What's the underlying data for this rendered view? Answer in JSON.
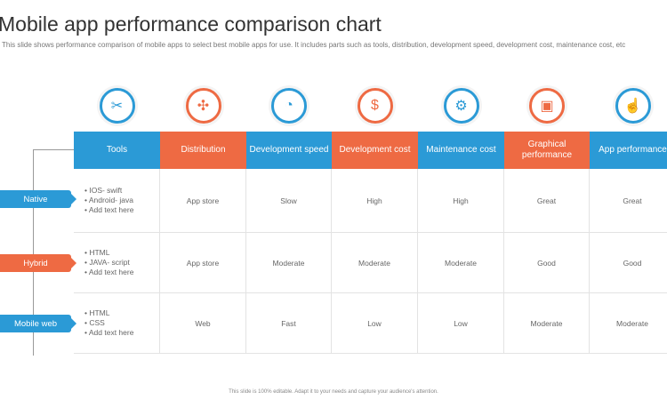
{
  "title": "Mobile app performance comparison chart",
  "subtitle": "This slide shows performance comparison of mobile apps to select best mobile apps for use. It includes parts such as tools, distribution, development speed, development cost, maintenance cost, etc",
  "footer": "This slide is 100% editable. Adapt it to your needs and capture your audience's attention.",
  "colors": {
    "blue": "#2b9ad6",
    "orange": "#ee6a43"
  },
  "columns": [
    {
      "label": "Tools",
      "icon": "tools-icon",
      "color": "blue"
    },
    {
      "label": "Distribution",
      "icon": "network-icon",
      "color": "orange"
    },
    {
      "label": "Development speed",
      "icon": "speedometer-icon",
      "color": "blue"
    },
    {
      "label": "Development cost",
      "icon": "money-bag-icon",
      "color": "orange"
    },
    {
      "label": "Maintenance cost",
      "icon": "maintenance-gear-icon",
      "color": "blue"
    },
    {
      "label": "Graphical performance",
      "icon": "graphics-monitor-icon",
      "color": "orange"
    },
    {
      "label": "App performance",
      "icon": "mobile-touch-icon",
      "color": "blue"
    }
  ],
  "rows": [
    {
      "label": "Native",
      "color": "blue",
      "tools": [
        "IOS- swift",
        "Android- java",
        "Add text here"
      ],
      "values": [
        "App store",
        "Slow",
        "High",
        "High",
        "Great",
        "Great"
      ]
    },
    {
      "label": "Hybrid",
      "color": "orange",
      "tools": [
        "HTML",
        "JAVA- script",
        "Add text here"
      ],
      "values": [
        "App store",
        "Moderate",
        "Moderate",
        "Moderate",
        "Good",
        "Good"
      ]
    },
    {
      "label": "Mobile web",
      "color": "blue",
      "tools": [
        "HTML",
        "CSS",
        "Add text here"
      ],
      "values": [
        "Web",
        "Fast",
        "Low",
        "Low",
        "Moderate",
        "Moderate"
      ]
    }
  ]
}
